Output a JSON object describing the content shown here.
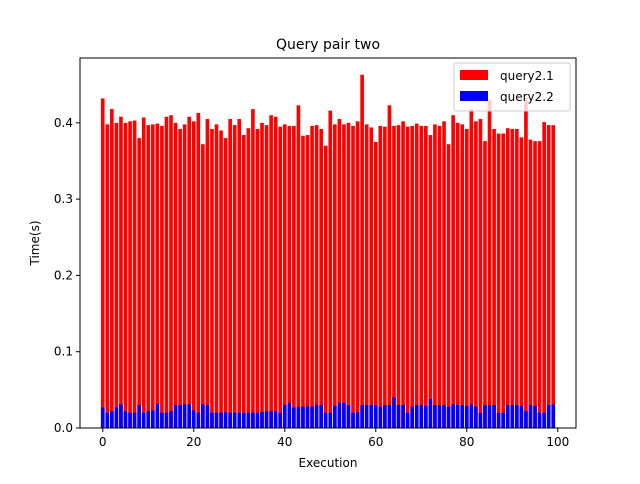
{
  "chart_data": {
    "type": "bar",
    "title": "Query pair two",
    "xlabel": "Execution",
    "ylabel": "Time(s)",
    "xlim": [
      -5,
      104
    ],
    "ylim": [
      0,
      0.485
    ],
    "xticks": [
      0,
      20,
      40,
      60,
      80,
      100
    ],
    "yticks": [
      0.0,
      0.1,
      0.2,
      0.3,
      0.4
    ],
    "ytick_labels": [
      "0.0",
      "0.1",
      "0.2",
      "0.3",
      "0.4"
    ],
    "grid": false,
    "legend_position": "top-right",
    "x": [
      0,
      1,
      2,
      3,
      4,
      5,
      6,
      7,
      8,
      9,
      10,
      11,
      12,
      13,
      14,
      15,
      16,
      17,
      18,
      19,
      20,
      21,
      22,
      23,
      24,
      25,
      26,
      27,
      28,
      29,
      30,
      31,
      32,
      33,
      34,
      35,
      36,
      37,
      38,
      39,
      40,
      41,
      42,
      43,
      44,
      45,
      46,
      47,
      48,
      49,
      50,
      51,
      52,
      53,
      54,
      55,
      56,
      57,
      58,
      59,
      60,
      61,
      62,
      63,
      64,
      65,
      66,
      67,
      68,
      69,
      70,
      71,
      72,
      73,
      74,
      75,
      76,
      77,
      78,
      79,
      80,
      81,
      82,
      83,
      84,
      85,
      86,
      87,
      88,
      89,
      90,
      91,
      92,
      93,
      94,
      95,
      96,
      97,
      98,
      99
    ],
    "series": [
      {
        "name": "query2.1",
        "color": "#ff0000",
        "values": [
          0.432,
          0.398,
          0.418,
          0.4,
          0.408,
          0.4,
          0.402,
          0.403,
          0.38,
          0.407,
          0.397,
          0.398,
          0.399,
          0.396,
          0.408,
          0.41,
          0.4,
          0.392,
          0.398,
          0.408,
          0.402,
          0.413,
          0.372,
          0.405,
          0.392,
          0.398,
          0.39,
          0.38,
          0.405,
          0.397,
          0.405,
          0.384,
          0.393,
          0.418,
          0.392,
          0.4,
          0.397,
          0.41,
          0.408,
          0.395,
          0.398,
          0.396,
          0.396,
          0.423,
          0.383,
          0.384,
          0.396,
          0.397,
          0.392,
          0.37,
          0.416,
          0.398,
          0.405,
          0.398,
          0.4,
          0.396,
          0.402,
          0.463,
          0.398,
          0.394,
          0.375,
          0.396,
          0.395,
          0.423,
          0.396,
          0.397,
          0.402,
          0.395,
          0.396,
          0.399,
          0.396,
          0.396,
          0.384,
          0.398,
          0.396,
          0.402,
          0.372,
          0.41,
          0.4,
          0.398,
          0.392,
          0.418,
          0.402,
          0.405,
          0.376,
          0.43,
          0.392,
          0.386,
          0.386,
          0.393,
          0.392,
          0.392,
          0.381,
          0.433,
          0.378,
          0.376,
          0.376,
          0.401,
          0.397,
          0.397
        ]
      },
      {
        "name": "query2.2",
        "color": "#0000ff",
        "values": [
          0.027,
          0.02,
          0.022,
          0.027,
          0.031,
          0.022,
          0.02,
          0.02,
          0.03,
          0.02,
          0.022,
          0.023,
          0.032,
          0.02,
          0.02,
          0.022,
          0.03,
          0.03,
          0.031,
          0.031,
          0.023,
          0.02,
          0.031,
          0.03,
          0.02,
          0.02,
          0.02,
          0.021,
          0.02,
          0.02,
          0.02,
          0.02,
          0.02,
          0.02,
          0.02,
          0.021,
          0.022,
          0.022,
          0.022,
          0.02,
          0.03,
          0.033,
          0.027,
          0.028,
          0.028,
          0.029,
          0.028,
          0.03,
          0.03,
          0.02,
          0.02,
          0.029,
          0.033,
          0.033,
          0.03,
          0.02,
          0.021,
          0.03,
          0.03,
          0.03,
          0.03,
          0.028,
          0.03,
          0.03,
          0.04,
          0.03,
          0.03,
          0.02,
          0.028,
          0.03,
          0.03,
          0.029,
          0.038,
          0.03,
          0.03,
          0.03,
          0.028,
          0.031,
          0.03,
          0.03,
          0.029,
          0.031,
          0.028,
          0.02,
          0.03,
          0.03,
          0.03,
          0.02,
          0.02,
          0.03,
          0.03,
          0.03,
          0.029,
          0.022,
          0.03,
          0.029,
          0.02,
          0.02,
          0.03,
          0.031
        ]
      }
    ]
  }
}
